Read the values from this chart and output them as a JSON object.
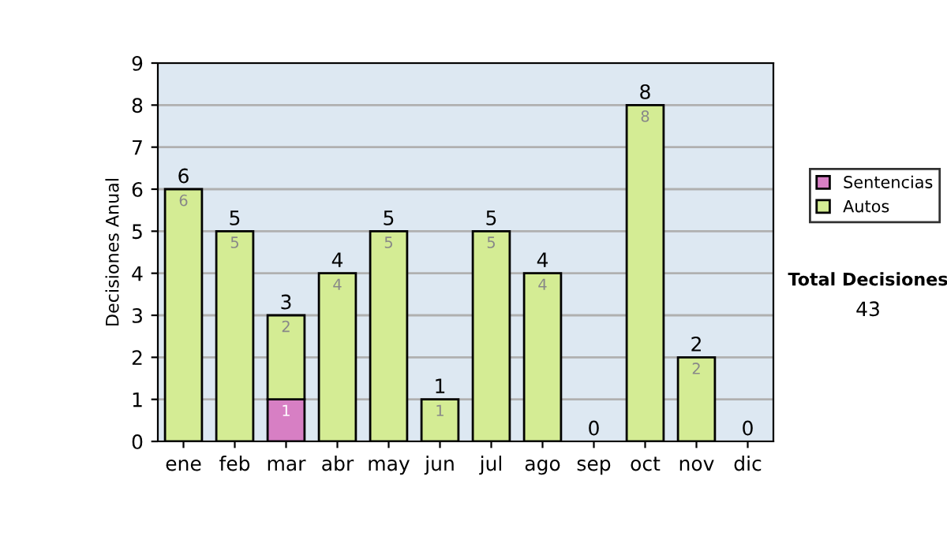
{
  "chart_data": {
    "type": "bar",
    "ylabel": "Decisiones Anual",
    "categories": [
      "ene",
      "feb",
      "mar",
      "abr",
      "may",
      "jun",
      "jul",
      "ago",
      "sep",
      "oct",
      "nov",
      "dic"
    ],
    "series": [
      {
        "name": "Sentencias",
        "color": "#d77fc4",
        "values": [
          0,
          0,
          1,
          0,
          0,
          0,
          0,
          0,
          0,
          0,
          0,
          0
        ],
        "value_labels": [
          null,
          null,
          "1",
          null,
          null,
          null,
          null,
          null,
          null,
          null,
          null,
          null
        ]
      },
      {
        "name": "Autos",
        "color": "#d4ec94",
        "values": [
          6,
          5,
          2,
          4,
          5,
          1,
          5,
          4,
          0,
          8,
          2,
          0
        ],
        "value_labels": [
          "6",
          "5",
          "2",
          "4",
          "5",
          "1",
          "5",
          "4",
          null,
          "8",
          "2",
          null
        ]
      }
    ],
    "stacked": true,
    "totals": [
      "6",
      "5",
      "3",
      "4",
      "5",
      "1",
      "5",
      "4",
      "0",
      "8",
      "2",
      "0"
    ],
    "ylim": [
      0,
      9
    ],
    "yticks": [
      0,
      1,
      2,
      3,
      4,
      5,
      6,
      7,
      8,
      9
    ],
    "grid": "y",
    "legend": "right",
    "annotations": [
      "Total Decisiones",
      "43"
    ]
  }
}
